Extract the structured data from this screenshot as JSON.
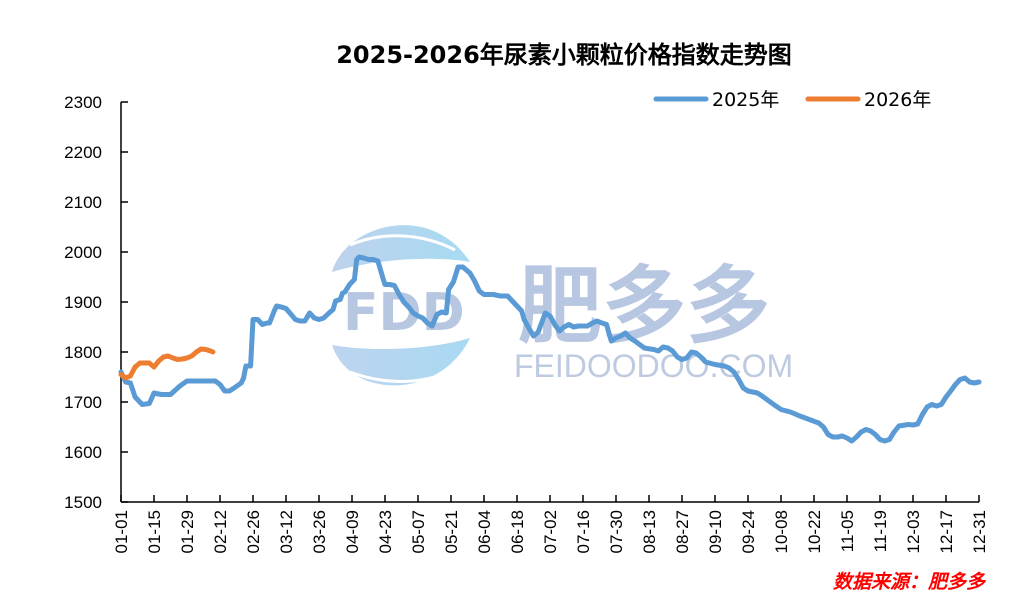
{
  "chart_data": {
    "type": "line",
    "title": "2025-2026年尿素小颗粒价格指数走势图",
    "xlabel": "",
    "ylabel": "",
    "ylim": [
      1500,
      2300
    ],
    "yticks": [
      1500,
      1600,
      1700,
      1800,
      1900,
      2000,
      2100,
      2200,
      2300
    ],
    "xticks": [
      "01-01",
      "01-15",
      "01-29",
      "02-12",
      "02-26",
      "03-12",
      "03-26",
      "04-09",
      "04-23",
      "05-07",
      "05-21",
      "06-04",
      "06-18",
      "07-02",
      "07-16",
      "07-30",
      "08-13",
      "08-27",
      "09-10",
      "09-24",
      "10-08",
      "10-22",
      "11-05",
      "11-19",
      "12-03",
      "12-17",
      "12-31"
    ],
    "grid": false,
    "legend_position": "top-right",
    "x_unit": "day-of-year index (0 = 01-01)",
    "series": [
      {
        "name": "2025年",
        "color": "#5b9bd5",
        "points": [
          [
            0,
            1760
          ],
          [
            2,
            1740
          ],
          [
            4,
            1738
          ],
          [
            6,
            1710
          ],
          [
            9,
            1695
          ],
          [
            12,
            1697
          ],
          [
            14,
            1718
          ],
          [
            17,
            1715
          ],
          [
            21,
            1715
          ],
          [
            25,
            1732
          ],
          [
            28,
            1742
          ],
          [
            33,
            1742
          ],
          [
            38,
            1742
          ],
          [
            40,
            1742
          ],
          [
            42,
            1735
          ],
          [
            44,
            1722
          ],
          [
            46,
            1722
          ],
          [
            48,
            1728
          ],
          [
            51,
            1738
          ],
          [
            52,
            1748
          ],
          [
            53,
            1772
          ],
          [
            55,
            1772
          ],
          [
            56,
            1865
          ],
          [
            58,
            1865
          ],
          [
            60,
            1855
          ],
          [
            62,
            1858
          ],
          [
            63,
            1858
          ],
          [
            65,
            1882
          ],
          [
            66,
            1892
          ],
          [
            68,
            1890
          ],
          [
            70,
            1887
          ],
          [
            72,
            1876
          ],
          [
            74,
            1865
          ],
          [
            76,
            1862
          ],
          [
            78,
            1862
          ],
          [
            80,
            1878
          ],
          [
            82,
            1868
          ],
          [
            84,
            1865
          ],
          [
            86,
            1868
          ],
          [
            88,
            1877
          ],
          [
            90,
            1885
          ],
          [
            91,
            1902
          ],
          [
            93,
            1905
          ],
          [
            94,
            1918
          ],
          [
            95,
            1920
          ],
          [
            97,
            1935
          ],
          [
            99,
            1945
          ],
          [
            100,
            1985
          ],
          [
            101,
            1990
          ],
          [
            103,
            1988
          ],
          [
            105,
            1985
          ],
          [
            107,
            1985
          ],
          [
            109,
            1982
          ],
          [
            111,
            1950
          ],
          [
            112,
            1935
          ],
          [
            114,
            1935
          ],
          [
            116,
            1933
          ],
          [
            118,
            1915
          ],
          [
            120,
            1900
          ],
          [
            122,
            1890
          ],
          [
            124,
            1878
          ],
          [
            126,
            1872
          ],
          [
            128,
            1868
          ],
          [
            130,
            1858
          ],
          [
            132,
            1852
          ],
          [
            134,
            1875
          ],
          [
            136,
            1880
          ],
          [
            138,
            1878
          ],
          [
            139,
            1925
          ],
          [
            141,
            1940
          ],
          [
            143,
            1970
          ],
          [
            145,
            1970
          ],
          [
            147,
            1962
          ],
          [
            148,
            1958
          ],
          [
            150,
            1942
          ],
          [
            152,
            1922
          ],
          [
            154,
            1915
          ],
          [
            158,
            1915
          ],
          [
            161,
            1912
          ],
          [
            164,
            1912
          ],
          [
            166,
            1902
          ],
          [
            168,
            1892
          ],
          [
            170,
            1882
          ],
          [
            171,
            1865
          ],
          [
            173,
            1848
          ],
          [
            175,
            1832
          ],
          [
            177,
            1840
          ],
          [
            179,
            1865
          ],
          [
            180,
            1878
          ],
          [
            182,
            1872
          ],
          [
            184,
            1855
          ],
          [
            186,
            1842
          ],
          [
            188,
            1850
          ],
          [
            190,
            1855
          ],
          [
            192,
            1850
          ],
          [
            194,
            1852
          ],
          [
            196,
            1852
          ],
          [
            198,
            1852
          ],
          [
            200,
            1858
          ],
          [
            202,
            1862
          ],
          [
            204,
            1858
          ],
          [
            206,
            1855
          ],
          [
            207,
            1838
          ],
          [
            208,
            1822
          ],
          [
            210,
            1828
          ],
          [
            212,
            1832
          ],
          [
            214,
            1838
          ],
          [
            216,
            1828
          ],
          [
            218,
            1822
          ],
          [
            220,
            1815
          ],
          [
            222,
            1808
          ],
          [
            226,
            1805
          ],
          [
            228,
            1802
          ],
          [
            230,
            1810
          ],
          [
            232,
            1808
          ],
          [
            234,
            1802
          ],
          [
            236,
            1790
          ],
          [
            238,
            1785
          ],
          [
            240,
            1788
          ],
          [
            242,
            1800
          ],
          [
            244,
            1798
          ],
          [
            246,
            1790
          ],
          [
            248,
            1780
          ],
          [
            252,
            1775
          ],
          [
            256,
            1772
          ],
          [
            258,
            1768
          ],
          [
            260,
            1760
          ],
          [
            262,
            1745
          ],
          [
            264,
            1728
          ],
          [
            266,
            1722
          ],
          [
            270,
            1718
          ],
          [
            272,
            1712
          ],
          [
            276,
            1698
          ],
          [
            280,
            1685
          ],
          [
            284,
            1680
          ],
          [
            288,
            1672
          ],
          [
            292,
            1665
          ],
          [
            296,
            1658
          ],
          [
            298,
            1650
          ],
          [
            300,
            1635
          ],
          [
            302,
            1630
          ],
          [
            304,
            1630
          ],
          [
            306,
            1632
          ],
          [
            308,
            1628
          ],
          [
            310,
            1622
          ],
          [
            312,
            1630
          ],
          [
            314,
            1640
          ],
          [
            316,
            1645
          ],
          [
            318,
            1642
          ],
          [
            320,
            1635
          ],
          [
            322,
            1625
          ],
          [
            324,
            1622
          ],
          [
            326,
            1625
          ],
          [
            328,
            1640
          ],
          [
            330,
            1652
          ],
          [
            334,
            1655
          ],
          [
            336,
            1654
          ],
          [
            338,
            1656
          ],
          [
            340,
            1675
          ],
          [
            342,
            1690
          ],
          [
            344,
            1695
          ],
          [
            346,
            1692
          ],
          [
            348,
            1695
          ],
          [
            350,
            1710
          ],
          [
            352,
            1722
          ],
          [
            354,
            1735
          ],
          [
            356,
            1745
          ],
          [
            358,
            1748
          ],
          [
            360,
            1740
          ],
          [
            362,
            1738
          ],
          [
            364,
            1740
          ]
        ]
      },
      {
        "name": "2026年",
        "color": "#ed7d31",
        "points": [
          [
            0,
            1755
          ],
          [
            2,
            1748
          ],
          [
            4,
            1752
          ],
          [
            6,
            1770
          ],
          [
            8,
            1778
          ],
          [
            10,
            1778
          ],
          [
            12,
            1778
          ],
          [
            14,
            1770
          ],
          [
            16,
            1782
          ],
          [
            18,
            1790
          ],
          [
            20,
            1792
          ],
          [
            22,
            1788
          ],
          [
            24,
            1785
          ],
          [
            26,
            1786
          ],
          [
            28,
            1788
          ],
          [
            30,
            1792
          ],
          [
            32,
            1800
          ],
          [
            34,
            1806
          ],
          [
            36,
            1805
          ],
          [
            38,
            1802
          ],
          [
            39,
            1800
          ]
        ]
      }
    ],
    "source_note": "数据来源：肥多多",
    "watermark": {
      "logo_text": "FDD",
      "brand_cn": "肥多多",
      "brand_url": "FEIDOODOO.COM"
    }
  },
  "legend": {
    "items": [
      {
        "label": "2025年",
        "color": "#5b9bd5"
      },
      {
        "label": "2026年",
        "color": "#ed7d31"
      }
    ]
  }
}
